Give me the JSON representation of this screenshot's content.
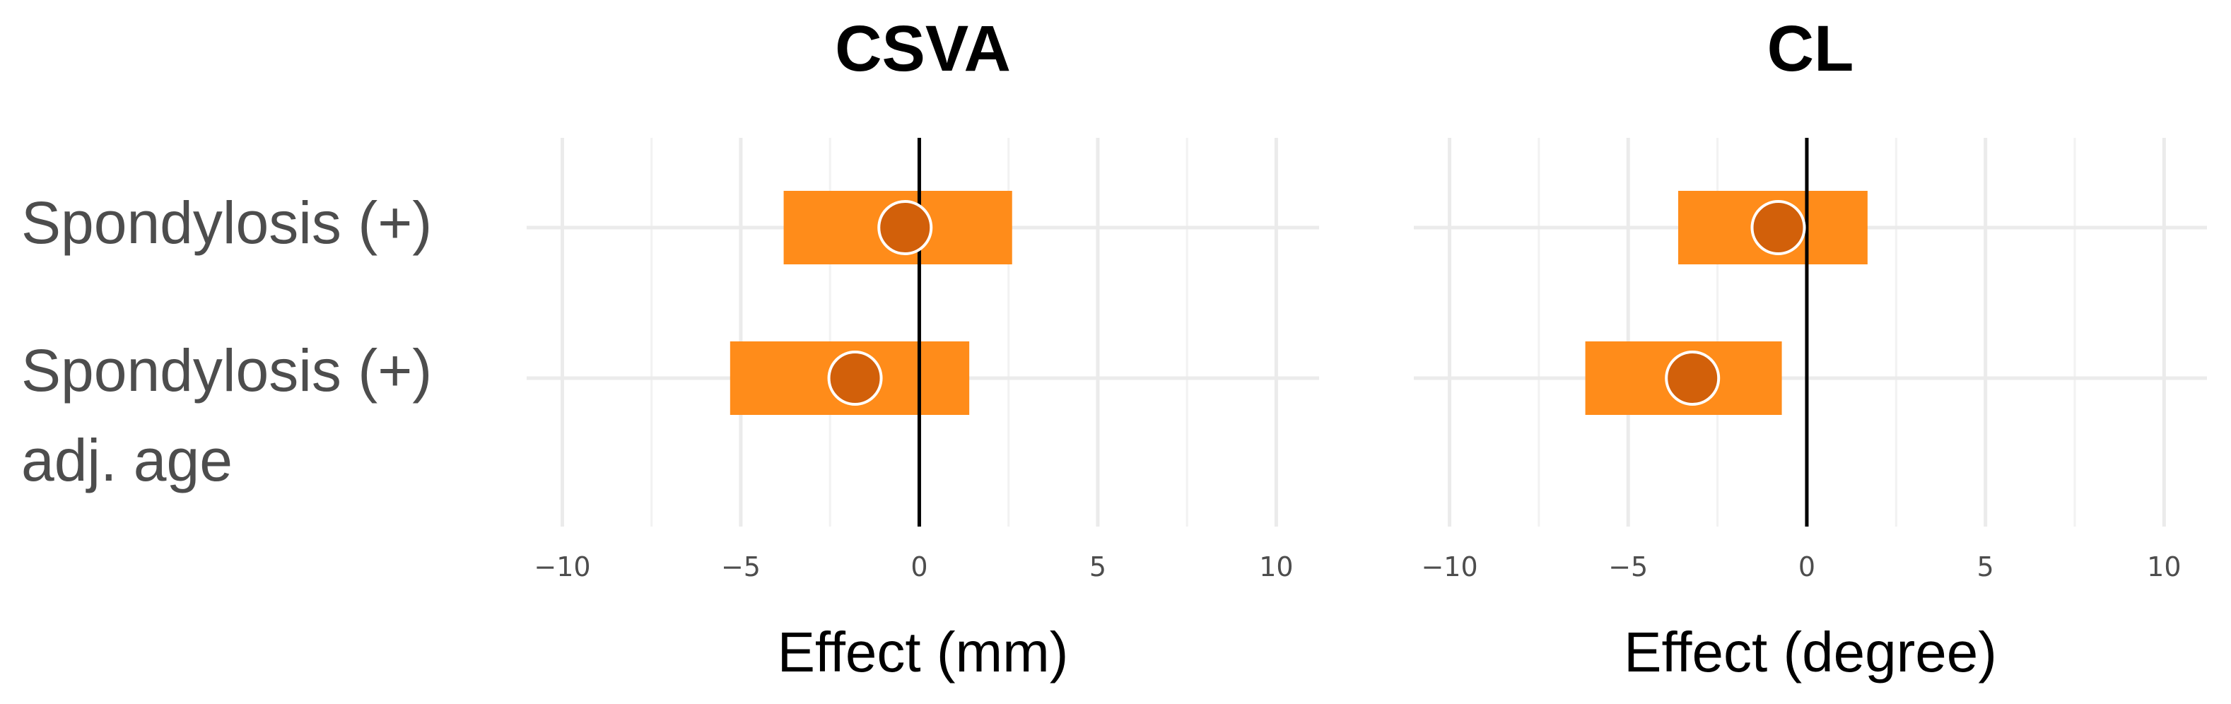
{
  "chart_data": [
    {
      "type": "forest",
      "title": "CSVA",
      "xlabel": "Effect (mm)",
      "xlim": [
        -11,
        11.2
      ],
      "xticks": [
        -10,
        -5,
        0,
        5,
        10
      ],
      "xtick_labels": [
        "−10",
        "−5",
        "0",
        "5",
        "10"
      ],
      "categories": [
        "Spondylosis (+)",
        "Spondylosis (+) adj. age"
      ],
      "estimates": [
        -0.4,
        -1.8
      ],
      "ci_lower": [
        -3.8,
        -5.3
      ],
      "ci_upper": [
        2.6,
        1.4
      ],
      "reference_line": 0,
      "grid": true
    },
    {
      "type": "forest",
      "title": "CL",
      "xlabel": "Effect (degree)",
      "xlim": [
        -11,
        11.2
      ],
      "xticks": [
        -10,
        -5,
        0,
        5,
        10
      ],
      "xtick_labels": [
        "−10",
        "−5",
        "0",
        "5",
        "10"
      ],
      "categories": [
        "Spondylosis (+)",
        "Spondylosis (+) adj. age"
      ],
      "estimates": [
        -0.8,
        -3.2
      ],
      "ci_lower": [
        -3.6,
        -6.2
      ],
      "ci_upper": [
        1.7,
        -0.7
      ],
      "reference_line": 0,
      "grid": true
    }
  ],
  "y_labels": {
    "row1": "Spondylosis (+)",
    "row2_line1": "Spondylosis (+)",
    "row2_line2": "adj. age"
  },
  "colors": {
    "ci_bar": "#FF8C1A",
    "point": "#D2600A",
    "point_stroke": "#FFFFFF",
    "grid_major": "#EBEBEB",
    "grid_minor": "#F2F2F2",
    "zero_line": "#000000",
    "tick_text": "#4D4D4D"
  }
}
